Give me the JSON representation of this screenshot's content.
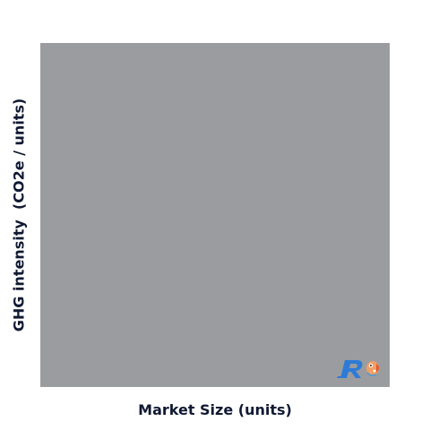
{
  "chart_data": {
    "type": "scatter",
    "title": "",
    "xlabel": "Market Size (units)",
    "ylabel": "GHG intensity  (CO2e / units)",
    "series": [],
    "plot_background": "#9b9c9f",
    "label_color": "#111a33"
  },
  "logo": {
    "icon": "r-logo-icon"
  }
}
